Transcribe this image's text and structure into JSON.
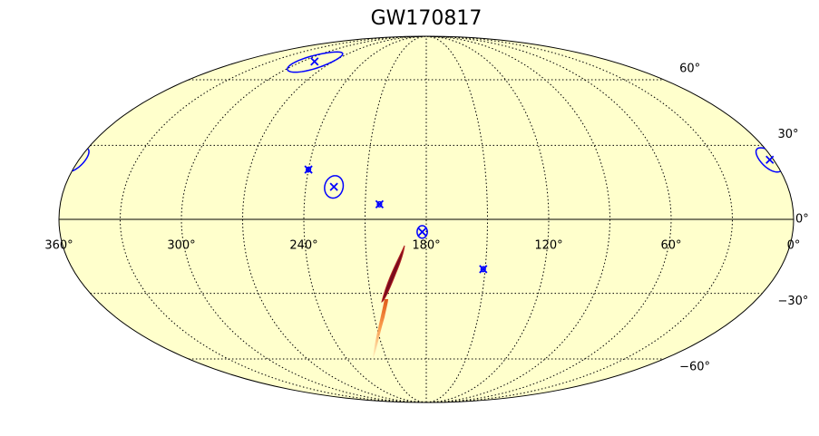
{
  "chart_data": {
    "type": "mollweide",
    "title": "GW170817",
    "background": "#ffffcc",
    "marker_color": "#0000ff",
    "lonlim": [
      360,
      0
    ],
    "lonticks": [
      {
        "value": 360,
        "label": "360°"
      },
      {
        "value": 300,
        "label": "300°"
      },
      {
        "value": 240,
        "label": "240°"
      },
      {
        "value": 180,
        "label": "180°"
      },
      {
        "value": 120,
        "label": "120°"
      },
      {
        "value": 60,
        "label": "60°"
      },
      {
        "value": 0,
        "label": "0°"
      }
    ],
    "meridians": [
      30,
      60,
      90,
      120,
      150,
      180,
      210,
      240,
      270,
      300,
      330
    ],
    "latlim": [
      -90,
      90
    ],
    "latticks": [
      {
        "value": 60,
        "label": "60°"
      },
      {
        "value": 30,
        "label": "30°"
      },
      {
        "value": 0,
        "label": "0°"
      },
      {
        "value": -30,
        "label": "−30°"
      },
      {
        "value": -60,
        "label": "−60°"
      }
    ],
    "grid": true,
    "points": [
      {
        "lon": 288,
        "lat": 70,
        "radius": 6
      },
      {
        "lon": 240,
        "lat": 20,
        "radius": 1
      },
      {
        "lon": 226,
        "lat": 13,
        "radius": 4.5
      },
      {
        "lon": 203,
        "lat": 6,
        "radius": 1
      },
      {
        "lon": 182,
        "lat": -5,
        "radius": 2.5
      },
      {
        "lon": 151,
        "lat": -20,
        "radius": 1
      },
      {
        "lon": 2,
        "lat": 24,
        "radius": 5
      }
    ]
  }
}
